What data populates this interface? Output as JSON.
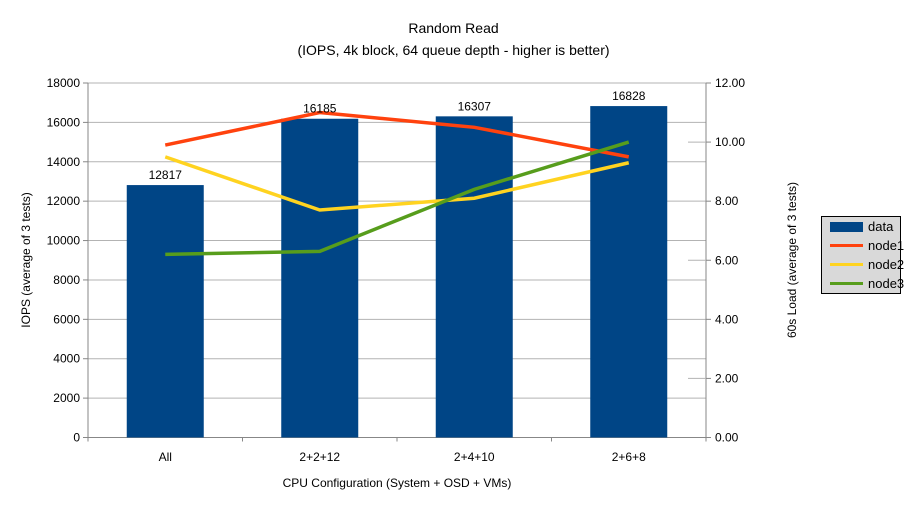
{
  "title": {
    "line1": "Random Read",
    "line2": "(IOPS, 4k block, 64 queue depth - higher is better)"
  },
  "chart_data": {
    "type": "bar+line combo",
    "categories": [
      "All",
      "2+2+12",
      "2+4+10",
      "2+6+8"
    ],
    "series": [
      {
        "name": "data",
        "type": "bar",
        "axis": "left",
        "color": "#004586",
        "values": [
          12817,
          16185,
          16307,
          16828
        ],
        "data_labels": [
          "12817",
          "16185",
          "16307",
          "16828"
        ]
      },
      {
        "name": "node1",
        "type": "line",
        "axis": "right",
        "color": "#FF420E",
        "values": [
          9.9,
          11.0,
          10.5,
          9.5
        ]
      },
      {
        "name": "node2",
        "type": "line",
        "axis": "right",
        "color": "#FFD320",
        "values": [
          9.5,
          7.7,
          8.1,
          9.3
        ]
      },
      {
        "name": "node3",
        "type": "line",
        "axis": "right",
        "color": "#579D1C",
        "values": [
          6.2,
          6.3,
          8.4,
          10.0
        ]
      }
    ],
    "left_axis": {
      "title": "IOPS (average of 3 tests)",
      "min": 0,
      "max": 18000,
      "step": 2000,
      "tick_labels": [
        "0",
        "2000",
        "4000",
        "6000",
        "8000",
        "10000",
        "12000",
        "14000",
        "16000",
        "18000"
      ]
    },
    "right_axis": {
      "title": "60s Load (average of 3 tests)",
      "min": 0,
      "max": 12,
      "step": 2,
      "tick_labels": [
        "0.00",
        "2.00",
        "4.00",
        "6.00",
        "8.00",
        "10.00",
        "12.00"
      ]
    },
    "x_axis": {
      "title": "CPU Configuration (System + OSD + VMs)"
    },
    "legend": {
      "position": "right",
      "items": [
        {
          "label": "data",
          "swatch": "rect",
          "color": "#004586"
        },
        {
          "label": "node1",
          "swatch": "line",
          "color": "#FF420E"
        },
        {
          "label": "node2",
          "swatch": "line",
          "color": "#FFD320"
        },
        {
          "label": "node3",
          "swatch": "line",
          "color": "#579D1C"
        }
      ]
    },
    "grid": true,
    "colors": {
      "background": "#FFFFFF",
      "grid": "#B3B3B3",
      "axis": "#878787",
      "text": "#000000",
      "legend_bg": "#D9D9D9",
      "legend_border": "#000000"
    }
  }
}
